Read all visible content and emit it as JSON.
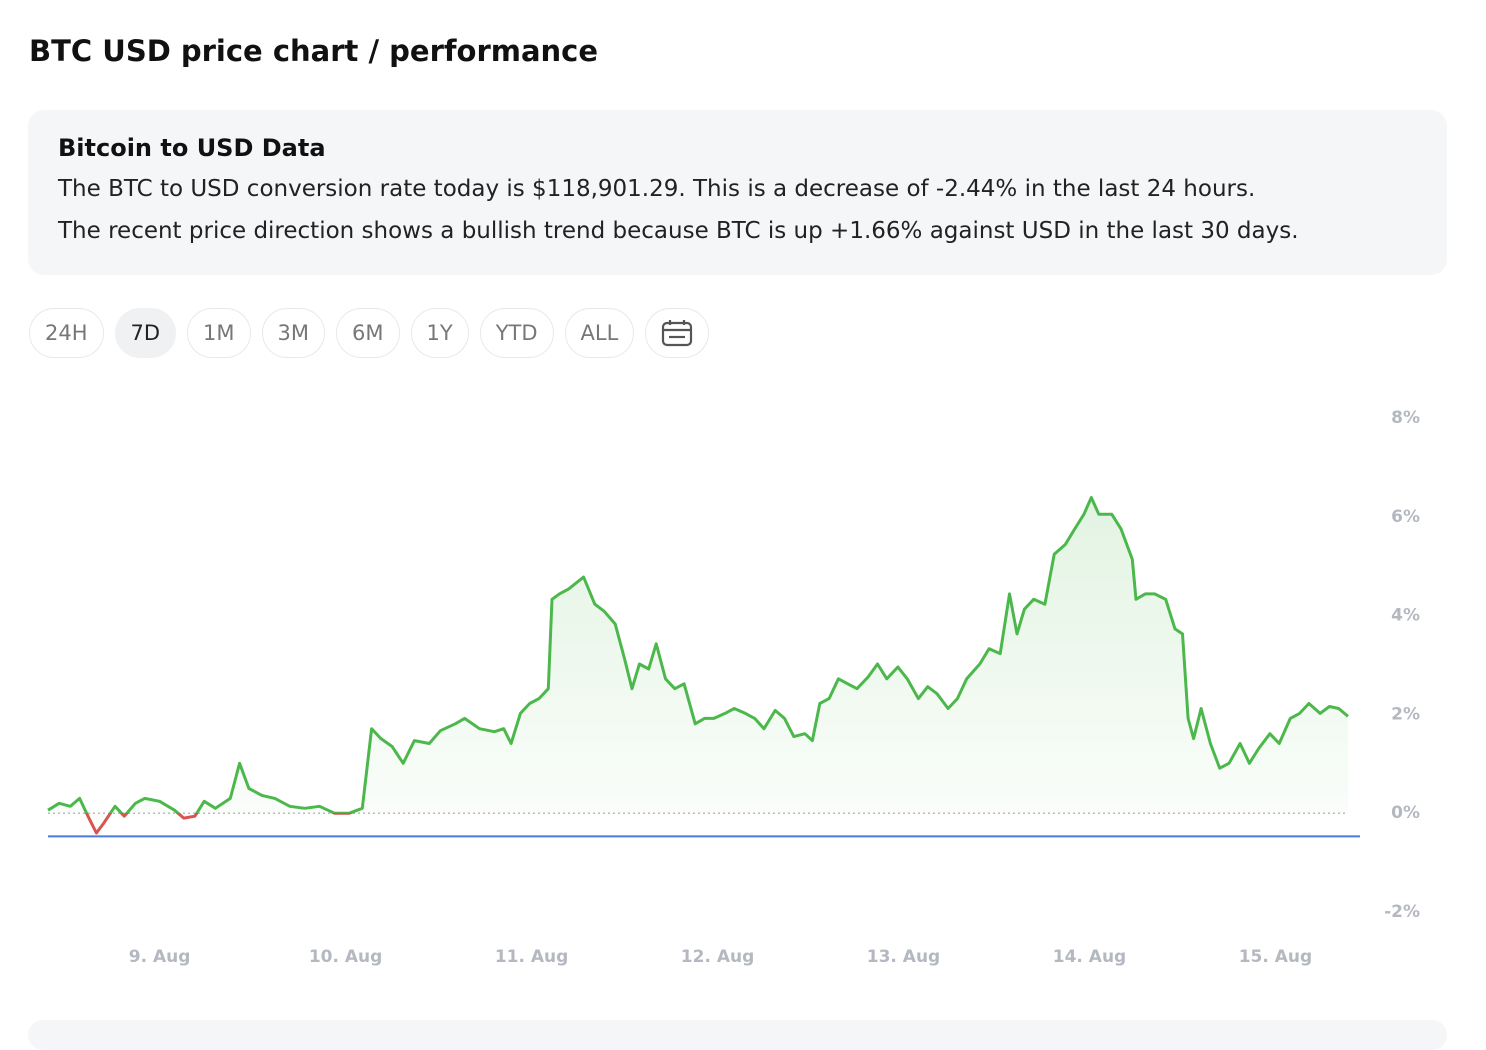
{
  "header": {
    "title": "BTC USD price chart / performance"
  },
  "info": {
    "title": "Bitcoin to USD Data",
    "lines": [
      "The BTC to USD conversion rate today is $118,901.29. This is a decrease of -2.44% in the last 24 hours.",
      "The recent price direction shows a bullish trend because BTC is up +1.66% against USD in the last 30 days."
    ]
  },
  "range_buttons": {
    "items": [
      "24H",
      "7D",
      "1M",
      "3M",
      "6M",
      "1Y",
      "YTD",
      "ALL"
    ],
    "selected": "7D"
  },
  "chart_data": {
    "type": "line",
    "x": [
      8.4,
      8.46,
      8.52,
      8.57,
      8.62,
      8.66,
      8.7,
      8.76,
      8.81,
      8.87,
      8.92,
      9.0,
      9.08,
      9.13,
      9.19,
      9.24,
      9.3,
      9.38,
      9.43,
      9.48,
      9.55,
      9.62,
      9.7,
      9.78,
      9.86,
      9.94,
      10.02,
      10.09,
      10.14,
      10.19,
      10.25,
      10.31,
      10.37,
      10.45,
      10.51,
      10.59,
      10.64,
      10.72,
      10.8,
      10.85,
      10.89,
      10.94,
      10.99,
      11.04,
      11.09,
      11.11,
      11.15,
      11.2,
      11.28,
      11.34,
      11.39,
      11.45,
      11.5,
      11.54,
      11.58,
      11.63,
      11.67,
      11.72,
      11.77,
      11.82,
      11.88,
      11.93,
      11.98,
      12.04,
      12.09,
      12.15,
      12.2,
      12.25,
      12.31,
      12.36,
      12.41,
      12.47,
      12.51,
      12.55,
      12.6,
      12.65,
      12.7,
      12.75,
      12.81,
      12.86,
      12.91,
      12.97,
      13.02,
      13.08,
      13.13,
      13.18,
      13.24,
      13.29,
      13.34,
      13.41,
      13.46,
      13.52,
      13.57,
      13.61,
      13.65,
      13.7,
      13.76,
      13.81,
      13.87,
      13.92,
      13.97,
      14.01,
      14.05,
      14.12,
      14.17,
      14.23,
      14.25,
      14.3,
      14.35,
      14.41,
      14.46,
      14.5,
      14.53,
      14.56,
      14.6,
      14.65,
      14.7,
      14.75,
      14.81,
      14.86,
      14.91,
      14.97,
      15.02,
      15.08,
      15.13,
      15.18,
      15.24,
      15.29,
      15.34,
      15.39
    ],
    "values": [
      0.06,
      0.2,
      0.14,
      0.3,
      -0.1,
      -0.4,
      -0.2,
      0.14,
      -0.06,
      0.2,
      0.3,
      0.24,
      0.06,
      -0.1,
      -0.06,
      0.24,
      0.1,
      0.3,
      1.01,
      0.5,
      0.36,
      0.3,
      0.14,
      0.1,
      0.14,
      0,
      0,
      0.1,
      1.71,
      1.51,
      1.35,
      1.01,
      1.47,
      1.41,
      1.67,
      1.81,
      1.92,
      1.71,
      1.65,
      1.71,
      1.41,
      2.02,
      2.22,
      2.32,
      2.52,
      4.33,
      4.44,
      4.54,
      4.78,
      4.23,
      4.09,
      3.83,
      3.13,
      2.52,
      3.02,
      2.92,
      3.43,
      2.72,
      2.52,
      2.62,
      1.81,
      1.92,
      1.92,
      2.02,
      2.12,
      2.02,
      1.92,
      1.71,
      2.08,
      1.92,
      1.55,
      1.61,
      1.47,
      2.22,
      2.32,
      2.72,
      2.62,
      2.52,
      2.76,
      3.02,
      2.72,
      2.96,
      2.72,
      2.32,
      2.56,
      2.42,
      2.12,
      2.32,
      2.72,
      3.02,
      3.33,
      3.23,
      4.44,
      3.63,
      4.13,
      4.33,
      4.23,
      5.24,
      5.44,
      5.75,
      6.05,
      6.39,
      6.05,
      6.05,
      5.75,
      5.14,
      4.33,
      4.44,
      4.44,
      4.33,
      3.73,
      3.63,
      1.92,
      1.51,
      2.12,
      1.41,
      0.91,
      1.01,
      1.41,
      1.01,
      1.31,
      1.61,
      1.41,
      1.92,
      2.02,
      2.22,
      2.02,
      2.16,
      2.12,
      1.96
    ],
    "color": "#4cb84c",
    "negative_color": "#d9534f",
    "reference_line": -0.47,
    "reference_color": "#4a7bd6",
    "xlim": [
      8.4,
      15.39
    ],
    "xticks": [
      {
        "value": 9,
        "label": "9. Aug"
      },
      {
        "value": 10,
        "label": "10. Aug"
      },
      {
        "value": 11,
        "label": "11. Aug"
      },
      {
        "value": 12,
        "label": "12. Aug"
      },
      {
        "value": 13,
        "label": "13. Aug"
      },
      {
        "value": 14,
        "label": "14. Aug"
      },
      {
        "value": 15,
        "label": "15. Aug"
      }
    ],
    "ylim": [
      -2,
      8
    ],
    "yticks": [
      {
        "value": -2,
        "label": "-2%"
      },
      {
        "value": 0,
        "label": "0%"
      },
      {
        "value": 2,
        "label": "2%"
      },
      {
        "value": 4,
        "label": "4%"
      },
      {
        "value": 6,
        "label": "6%"
      },
      {
        "value": 8,
        "label": "8%"
      }
    ],
    "grid": false
  }
}
